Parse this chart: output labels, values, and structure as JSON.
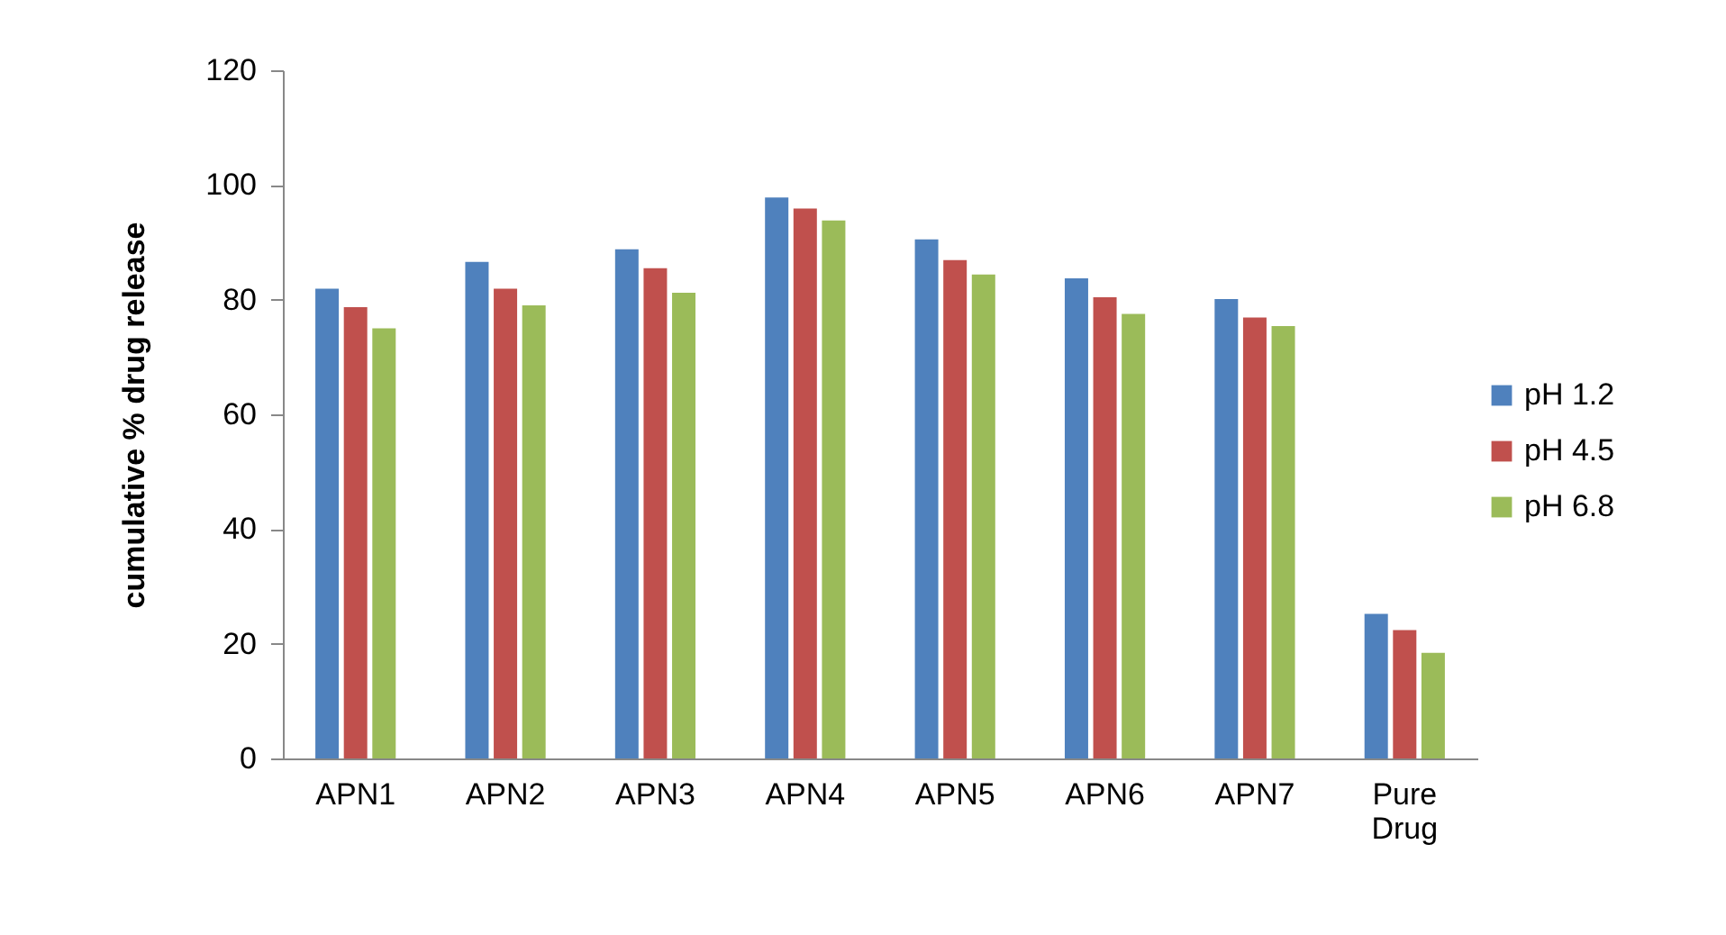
{
  "chart_data": {
    "type": "bar",
    "ylabel": "cumulative % drug release",
    "categories": [
      "APN1",
      "APN2",
      "APN3",
      "APN4",
      "APN5",
      "APN6",
      "APN7",
      "Pure Drug"
    ],
    "series": [
      {
        "name": "pH 1.2",
        "color": "#4f81bd",
        "values": [
          81.9,
          86.6,
          88.8,
          97.8,
          90.5,
          83.7,
          80.1,
          25.2
        ]
      },
      {
        "name": "pH 4.5",
        "color": "#c0504d",
        "values": [
          78.7,
          81.9,
          85.5,
          95.9,
          86.9,
          80.4,
          76.9,
          22.4
        ]
      },
      {
        "name": "pH 6.8",
        "color": "#9bbb59",
        "values": [
          75.0,
          79.0,
          81.2,
          93.8,
          84.4,
          77.5,
          75.4,
          18.4
        ]
      }
    ],
    "ylim": [
      0,
      120
    ],
    "yticks": [
      0,
      20,
      40,
      60,
      80,
      100,
      120
    ],
    "grid": false,
    "legend": "right"
  }
}
